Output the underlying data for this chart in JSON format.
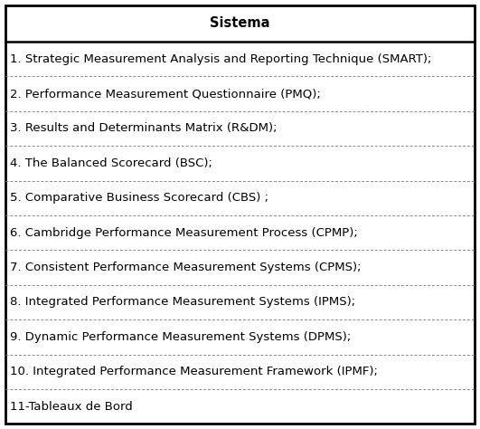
{
  "header": "Sistema",
  "rows": [
    "1. Strategic Measurement Analysis and Reporting Technique (SMART);",
    "2. Performance Measurement Questionnaire (PMQ);",
    "3. Results and Determinants Matrix (R&DM);",
    "4. The Balanced Scorecard (BSC);",
    "5. Comparative Business Scorecard (CBS) ;",
    "6. Cambridge Performance Measurement Process (CPMP);",
    "7. Consistent Performance Measurement Systems (CPMS);",
    "8. Integrated Performance Measurement Systems (IPMS);",
    "9. Dynamic Performance Measurement Systems (DPMS);",
    "10. Integrated Performance Measurement Framework (IPMF);",
    "11-Tableaux de Bord"
  ],
  "bg_color": "#ffffff",
  "border_color": "#000000",
  "dashed_color": "#888888",
  "header_fontsize": 10.5,
  "row_fontsize": 9.5,
  "fig_width": 5.31,
  "fig_height": 4.74,
  "dpi": 100
}
